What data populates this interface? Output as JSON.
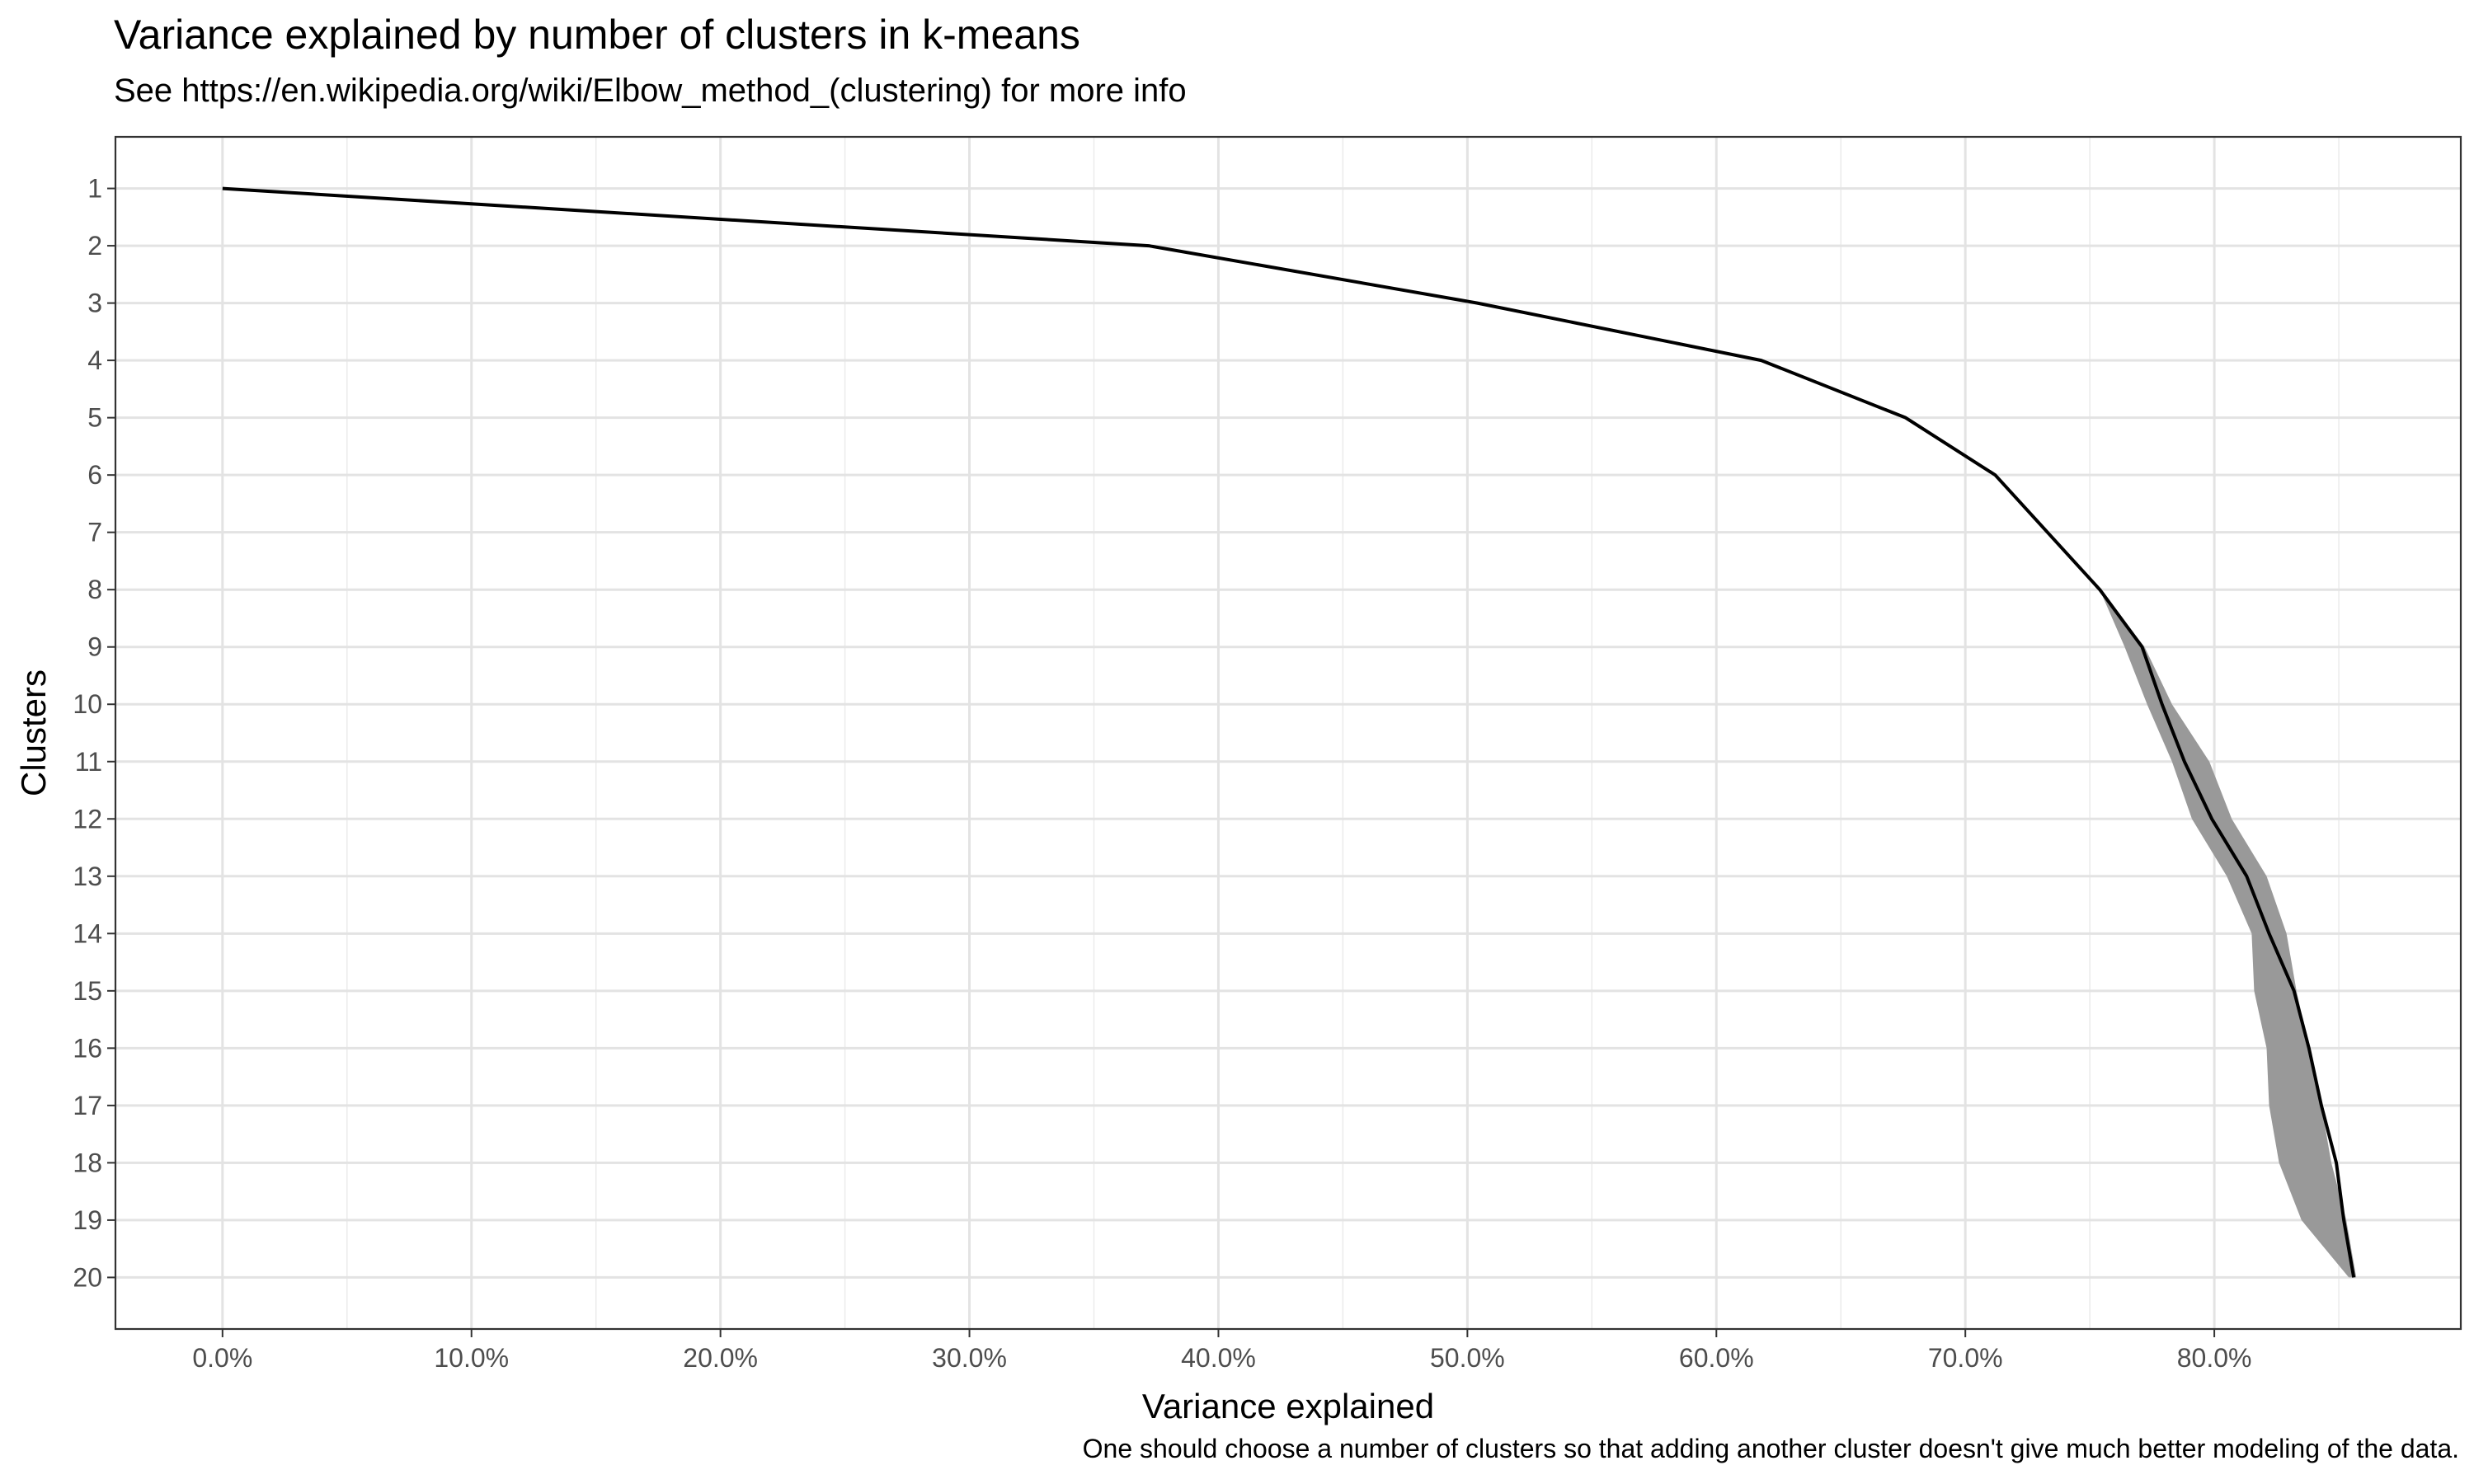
{
  "chart_data": {
    "type": "line",
    "title": "Variance explained by number of clusters in k-means",
    "subtitle": "See https://en.wikipedia.org/wiki/Elbow_method_(clustering) for more info",
    "caption": "One should choose a number of clusters so that adding another cluster doesn't give much better modeling of the data.",
    "xlabel": "Variance explained",
    "ylabel": "Clusters",
    "xlim": [
      -0.043,
      0.899
    ],
    "ylim": [
      0.1,
      20.9
    ],
    "y_reversed": true,
    "x_ticks": [
      0.0,
      0.1,
      0.2,
      0.3,
      0.4,
      0.5,
      0.6,
      0.7,
      0.8
    ],
    "x_tick_labels": [
      "0.0%",
      "10.0%",
      "20.0%",
      "30.0%",
      "40.0%",
      "50.0%",
      "60.0%",
      "70.0%",
      "80.0%"
    ],
    "y_ticks": [
      1,
      2,
      3,
      4,
      5,
      6,
      7,
      8,
      9,
      10,
      11,
      12,
      13,
      14,
      15,
      16,
      17,
      18,
      19,
      20
    ],
    "y_tick_labels": [
      "1",
      "2",
      "3",
      "4",
      "5",
      "6",
      "7",
      "8",
      "9",
      "10",
      "11",
      "12",
      "13",
      "14",
      "15",
      "16",
      "17",
      "18",
      "19",
      "20"
    ],
    "grid": true,
    "line_color": "#000000",
    "band_color": "#999999",
    "series": [
      {
        "clusters": [
          1,
          2,
          3,
          4,
          5,
          6,
          7,
          8,
          9,
          10,
          11,
          12,
          13,
          14,
          15,
          16,
          17,
          18,
          19,
          20
        ],
        "variance": [
          0.0,
          0.372,
          0.504,
          0.618,
          0.676,
          0.712,
          0.733,
          0.754,
          0.771,
          0.779,
          0.788,
          0.799,
          0.813,
          0.822,
          0.832,
          0.838,
          0.843,
          0.849,
          0.852,
          0.856
        ],
        "band_low": [
          0.0,
          0.372,
          0.504,
          0.618,
          0.676,
          0.712,
          0.733,
          0.754,
          0.764,
          0.773,
          0.783,
          0.791,
          0.805,
          0.815,
          0.816,
          0.821,
          0.822,
          0.826,
          0.835,
          0.854
        ],
        "band_high": [
          0.0,
          0.372,
          0.504,
          0.618,
          0.676,
          0.712,
          0.733,
          0.754,
          0.772,
          0.783,
          0.798,
          0.807,
          0.821,
          0.829,
          0.833,
          0.838,
          0.843,
          0.847,
          0.853,
          0.857
        ]
      }
    ]
  }
}
